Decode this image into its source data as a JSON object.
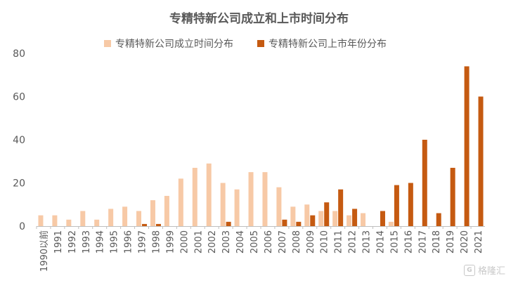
{
  "chart_data": {
    "type": "bar",
    "title": "专精特新公司成立和上市时间分布",
    "categories": [
      "1990以前",
      "1991",
      "1992",
      "1993",
      "1994",
      "1995",
      "1996",
      "1997",
      "1998",
      "1999",
      "2000",
      "2001",
      "2002",
      "2003",
      "2004",
      "2005",
      "2006",
      "2007",
      "2008",
      "2009",
      "2010",
      "2011",
      "2012",
      "2013",
      "2014",
      "2015",
      "2016",
      "2017",
      "2018",
      "2019",
      "2020",
      "2021"
    ],
    "series": [
      {
        "name": "专精特新公司成立时间分布",
        "color": "#f7c9a6",
        "values": [
          5,
          5,
          3,
          7,
          3,
          8,
          9,
          7,
          12,
          14,
          22,
          27,
          29,
          20,
          17,
          25,
          25,
          18,
          9,
          10,
          7,
          7,
          5,
          6,
          0,
          2,
          0,
          0,
          0,
          0,
          0,
          0
        ]
      },
      {
        "name": "专精特新公司上市年份分布",
        "color": "#c55a11",
        "values": [
          0,
          0,
          0,
          0,
          0,
          0,
          0,
          1,
          1,
          0,
          0,
          0,
          0,
          2,
          0,
          0,
          0,
          3,
          2,
          5,
          11,
          17,
          8,
          0,
          7,
          19,
          20,
          40,
          6,
          27,
          74,
          60
        ]
      }
    ],
    "ylim": [
      0,
      80
    ],
    "yticks": [
      0,
      20,
      40,
      60,
      80
    ],
    "grid": false,
    "legend": "top-center"
  },
  "watermark": {
    "text": "格隆汇",
    "logo": "G"
  }
}
